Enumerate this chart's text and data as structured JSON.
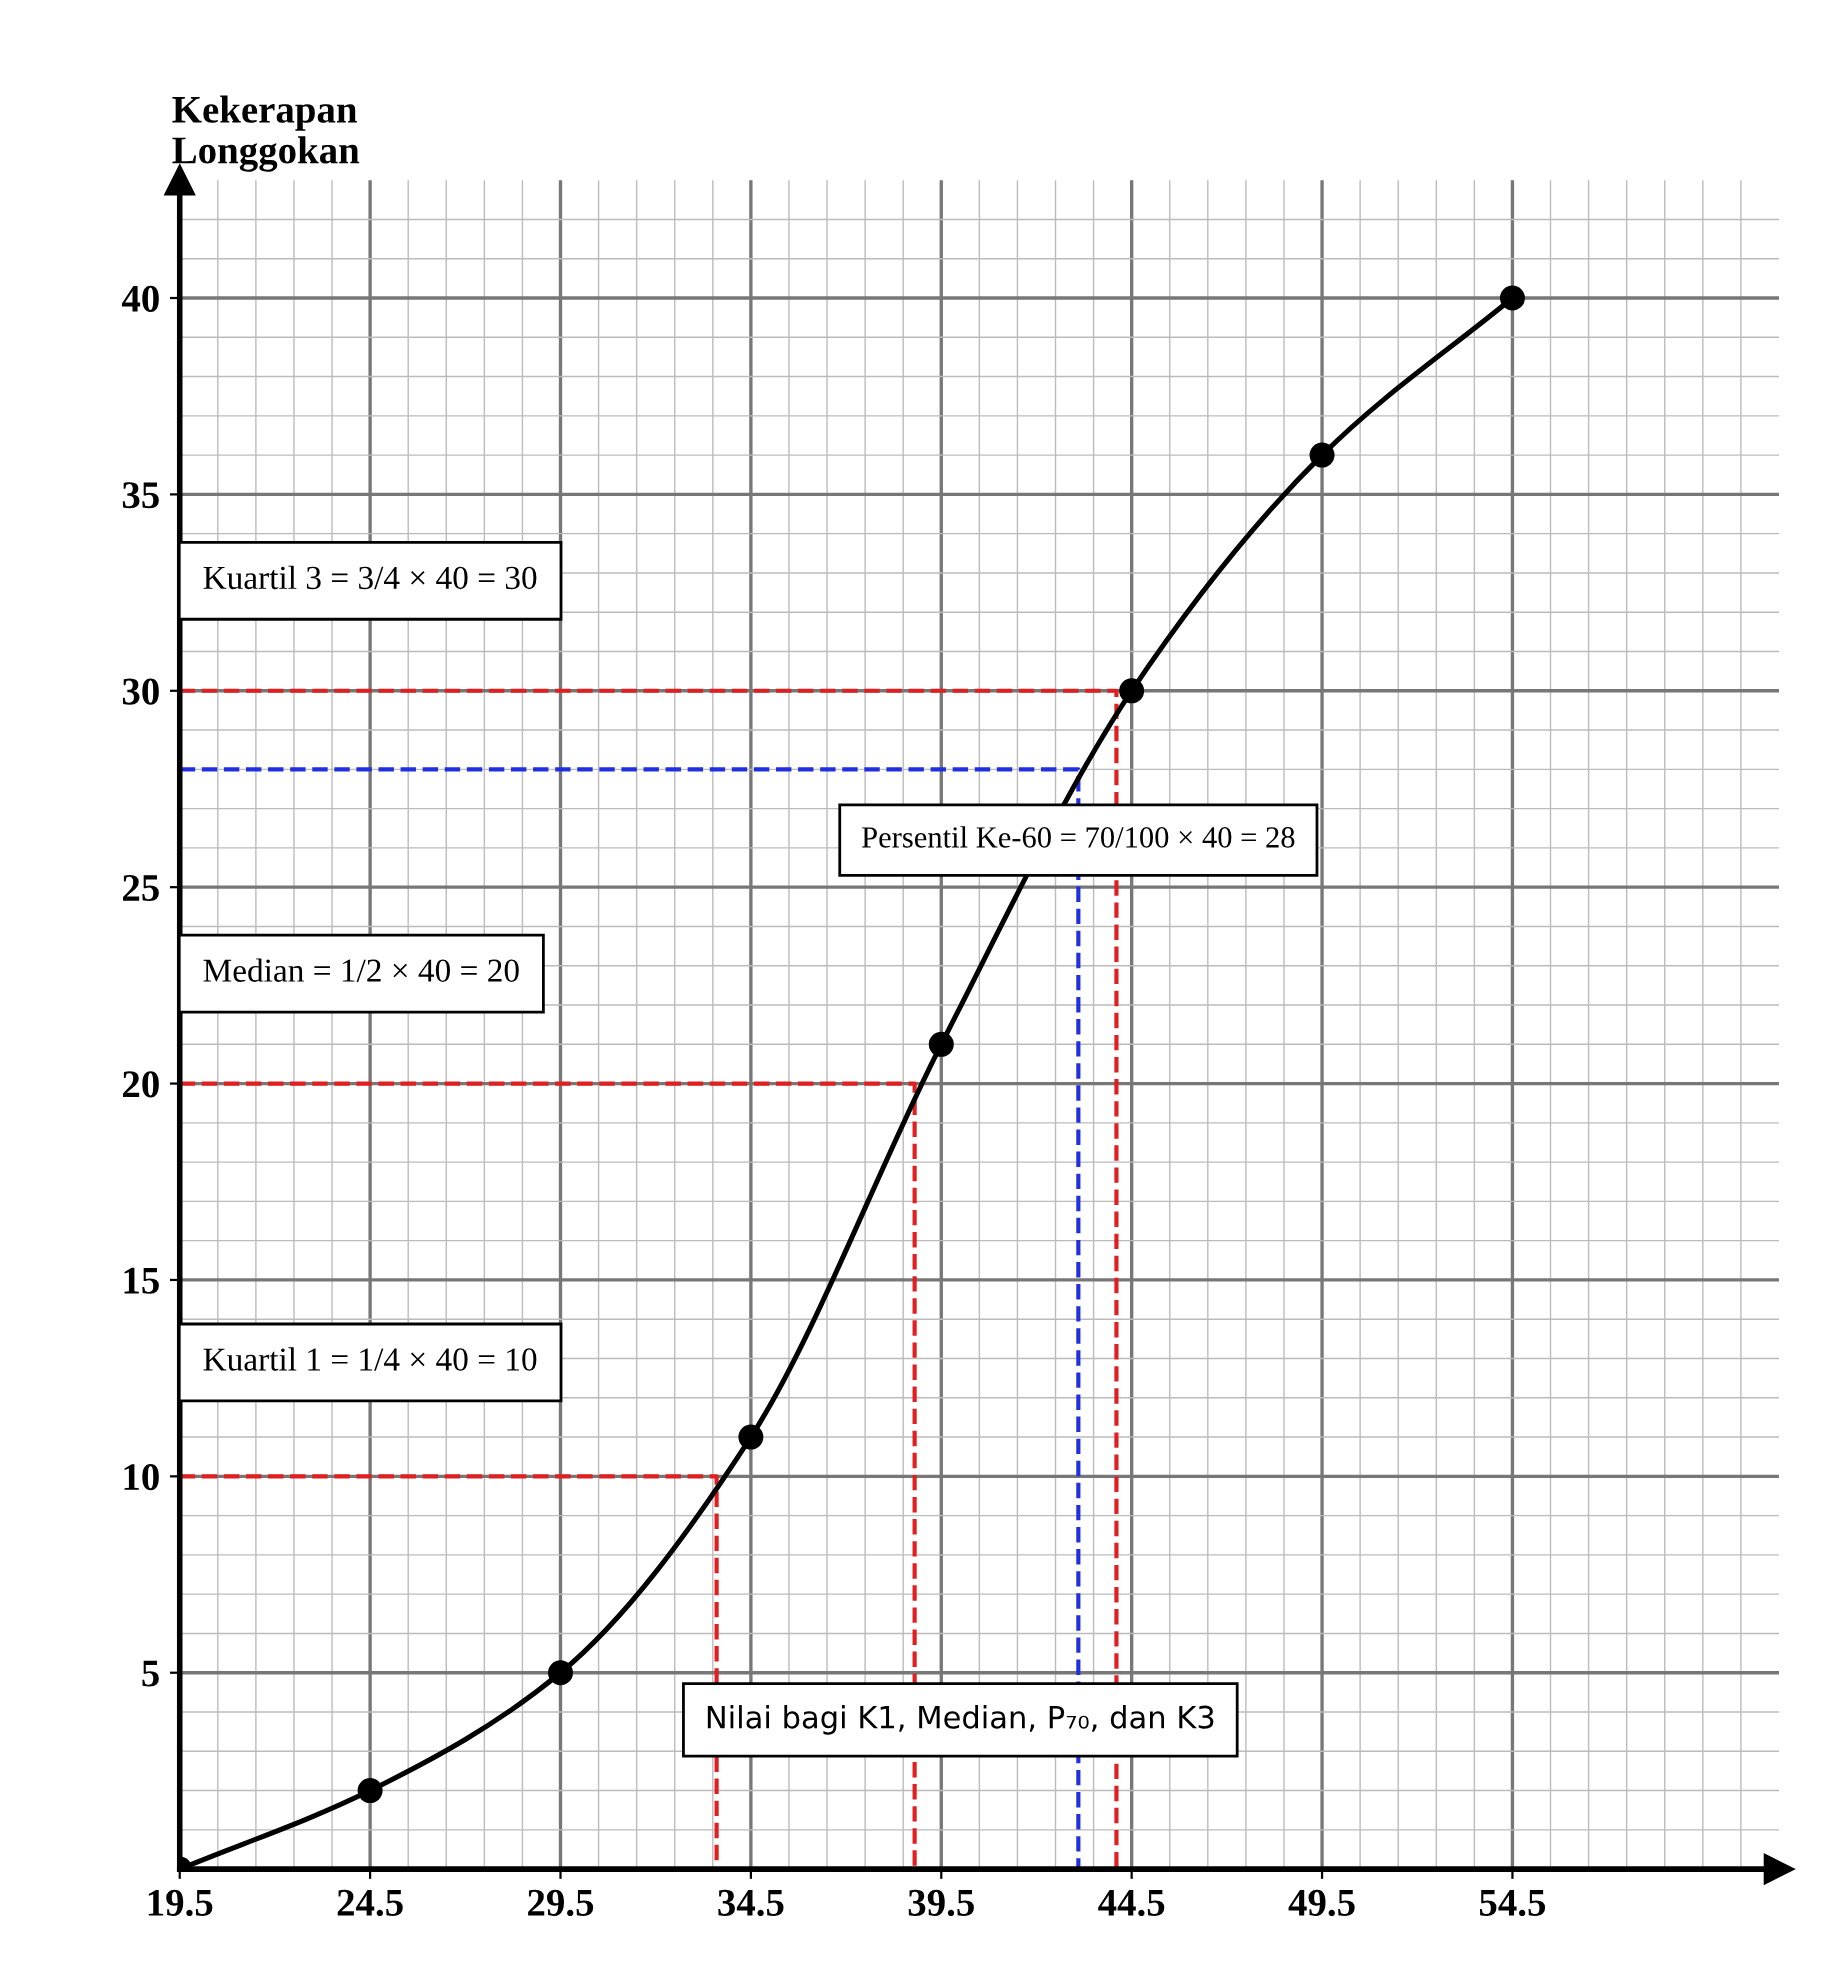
{
  "chart_data": {
    "type": "line",
    "ylabel": "Kekerapan\nLonggokan",
    "xlim": [
      19.5,
      61.5
    ],
    "ylim": [
      0,
      43
    ],
    "xticks": [
      19.5,
      24.5,
      29.5,
      34.5,
      39.5,
      44.5,
      49.5,
      54.5
    ],
    "yticks": [
      5,
      10,
      15,
      20,
      25,
      30,
      35,
      40
    ],
    "grid": true,
    "legend": false,
    "series": [
      {
        "x": [
          19.5,
          24.5,
          29.5,
          34.5,
          39.5,
          44.5,
          49.5,
          54.5
        ],
        "values": [
          0,
          2,
          5,
          11,
          21,
          30,
          36,
          40
        ],
        "color": "#000000",
        "marker": "circle",
        "line_style": "solid"
      },
      {
        "x": [
          19.5,
          33.6,
          33.6
        ],
        "values": [
          10,
          10,
          0
        ],
        "color": "#e02020",
        "marker": "none",
        "line_style": "dashed"
      },
      {
        "x": [
          19.5,
          38.8,
          38.8
        ],
        "values": [
          20,
          20,
          0
        ],
        "color": "#e02020",
        "marker": "none",
        "line_style": "dashed"
      },
      {
        "x": [
          19.5,
          43.1,
          43.1
        ],
        "values": [
          28,
          28,
          0
        ],
        "color": "#2030e0",
        "marker": "none",
        "line_style": "dashed"
      },
      {
        "x": [
          19.5,
          44.1,
          44.1
        ],
        "values": [
          30,
          30,
          0
        ],
        "color": "#e02020",
        "marker": "none",
        "line_style": "dashed"
      }
    ],
    "annotations": [
      "Kuartil 3 = 3/4 × 40 = 30",
      "Persentil Ke-60 = 70/100 × 40 = 28",
      "Median = 1/2 × 40 = 20",
      "Kuartil 1 = 1/4 × 40 = 10",
      "Nilai bagi K1, Median, P₇₀, dan K3"
    ]
  }
}
